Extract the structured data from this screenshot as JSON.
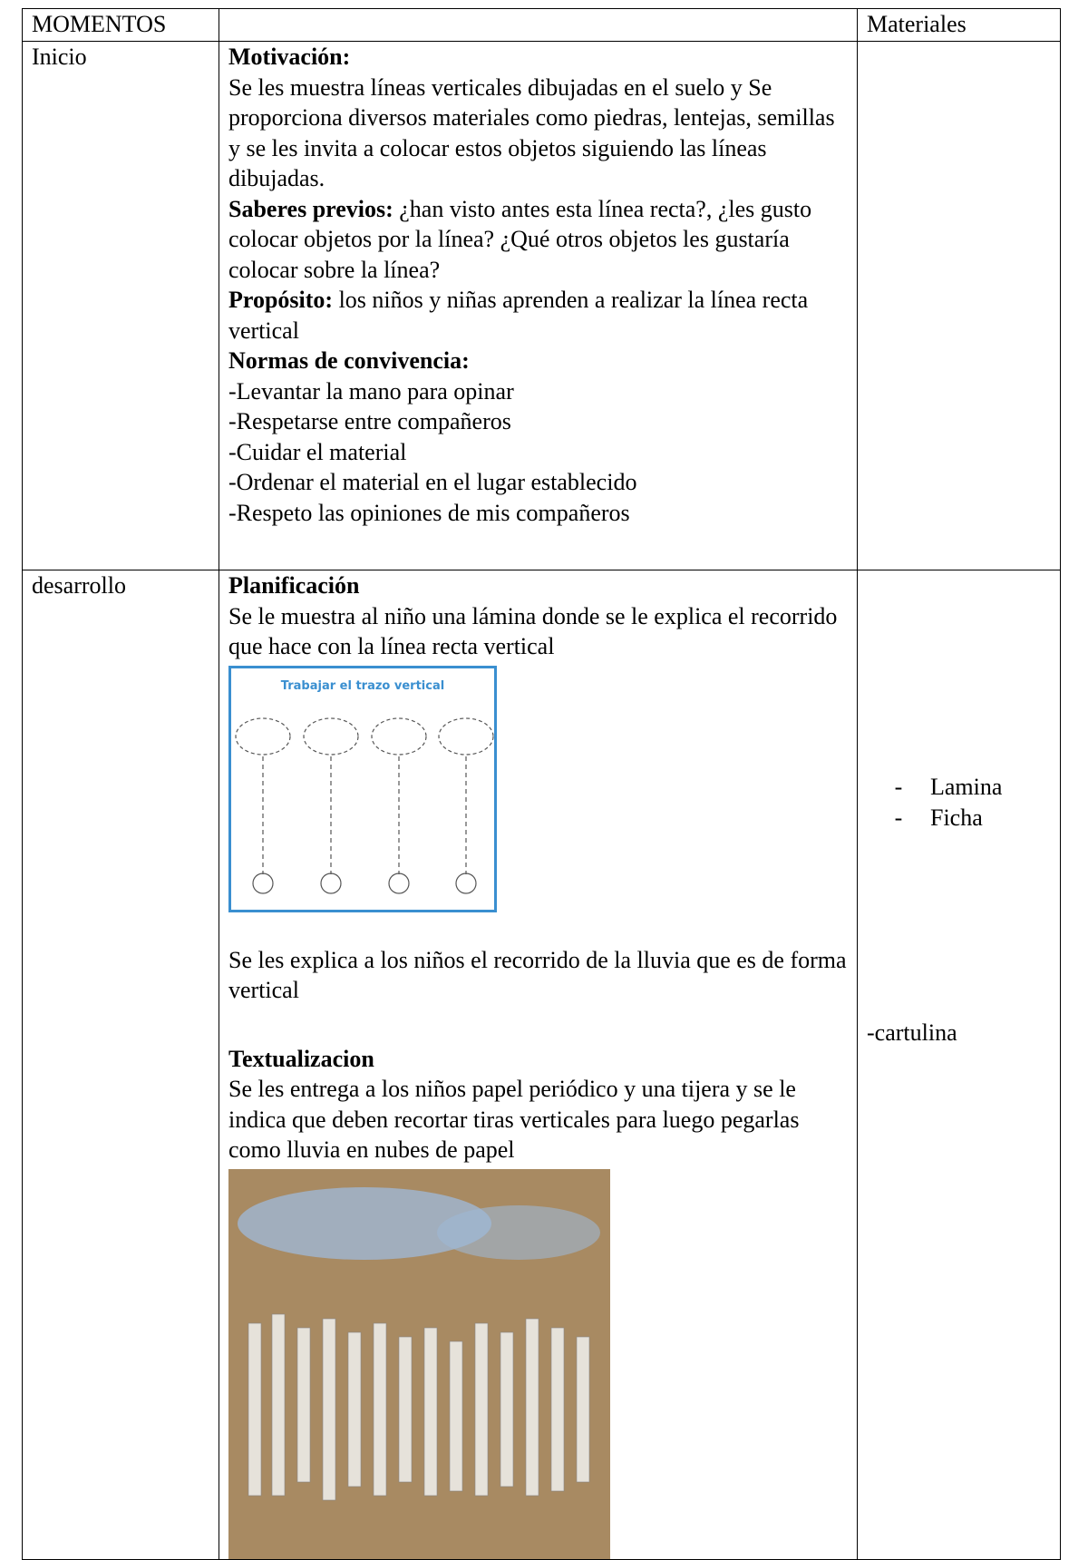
{
  "table": {
    "header": {
      "moment": "MOMENTOS",
      "materials": "Materiales"
    },
    "rows": [
      {
        "moment": "Inicio",
        "motivation": {
          "heading": "Motivación:",
          "text": "Se les muestra líneas verticales dibujadas en el suelo y Se proporciona diversos materiales como piedras, lentejas, semillas y se les invita a colocar estos objetos siguiendo las líneas dibujadas."
        },
        "prior_knowledge": {
          "heading": "Saberes previos:",
          "text": "¿han visto antes esta línea recta?, ¿les gusto colocar objetos por la línea? ¿Qué otros objetos les gustaría colocar sobre la línea?"
        },
        "purpose": {
          "heading": "Propósito:",
          "text": "los niños y niñas aprenden a realizar la línea recta vertical"
        },
        "norms": {
          "heading": "Normas de convivencia:",
          "items": [
            "-Levantar la mano para opinar",
            "-Respetarse entre compañeros",
            "-Cuidar el material",
            "-Ordenar el material en el lugar establecido",
            "-Respeto las opiniones de mis compañeros"
          ]
        }
      },
      {
        "moment": "desarrollo",
        "planning": {
          "heading": "Planificación",
          "text": "Se le muestra al niño una lámina donde se le explica el recorrido que hace con la línea recta vertical",
          "image_title": "Trabajar el trazo vertical",
          "after": "Se les explica a los niños el recorrido de la lluvia que es de forma vertical"
        },
        "textualization": {
          "heading": "Textualizacion",
          "text": "Se les entrega a los niños papel periódico y una tijera y se le indica que deben recortar tiras verticales para luego pegarlas como lluvia en nubes de papel"
        },
        "materials": {
          "list": [
            "Lamina",
            "Ficha"
          ],
          "dash": "-",
          "other": "-cartulina"
        }
      }
    ]
  }
}
